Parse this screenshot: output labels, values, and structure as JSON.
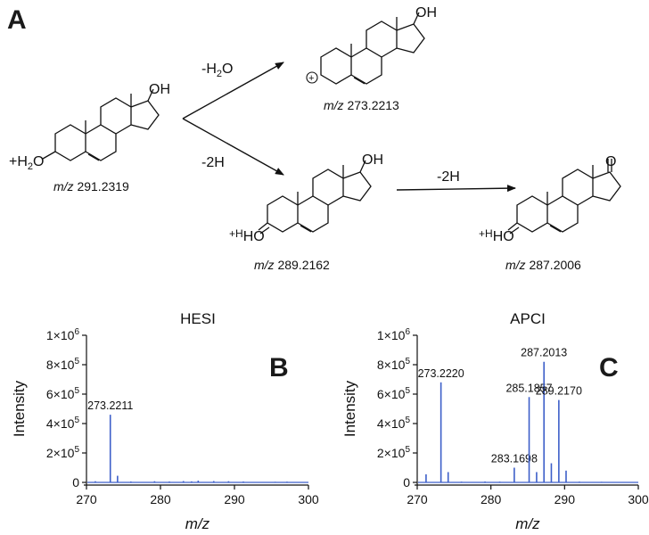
{
  "panel_labels": {
    "a": "A",
    "b": "B",
    "c": "C"
  },
  "scheme": {
    "precursor_mz": "291.2319",
    "product_dehydration_mz": "273.2213",
    "product_dehydrogenation_mz": "289.2162",
    "product_second_mz": "287.2006",
    "mz_prefix": "m/z",
    "arrow_water_loss": "-H",
    "arrow_water_loss_sub": "2",
    "arrow_water_loss_end": "O",
    "arrow_h_loss_1": "-2H",
    "arrow_h_loss_2": "-2H",
    "oh_label": "OH",
    "ho_label": "HO",
    "o_label": "O",
    "charge_h": "+H",
    "charge_h2o_pre": "+H",
    "charge_h2o_sub": "2",
    "charge_h2o_post": "O",
    "cation_symbol": "+"
  },
  "chart_data": [
    {
      "type": "bar",
      "title": "HESI",
      "panel": "B",
      "xlabel": "m/z",
      "ylabel": "Intensity",
      "xlim": [
        270,
        300
      ],
      "ylim": [
        0,
        1000000
      ],
      "x_ticks": [
        270,
        280,
        290,
        300
      ],
      "y_ticks": [
        {
          "value": 0,
          "mant": "0",
          "exp": ""
        },
        {
          "value": 200000,
          "mant": "2×10",
          "exp": "5"
        },
        {
          "value": 400000,
          "mant": "4×10",
          "exp": "5"
        },
        {
          "value": 600000,
          "mant": "6×10",
          "exp": "5"
        },
        {
          "value": 800000,
          "mant": "8×10",
          "exp": "5"
        },
        {
          "value": 1000000,
          "mant": "1×10",
          "exp": "6"
        }
      ],
      "peaks": [
        {
          "x": 271.2,
          "y": 8000
        },
        {
          "x": 273.2211,
          "y": 460000,
          "label": "273.2211"
        },
        {
          "x": 274.2,
          "y": 45000
        },
        {
          "x": 276.0,
          "y": 6000
        },
        {
          "x": 279.2,
          "y": 8000
        },
        {
          "x": 281.2,
          "y": 6000
        },
        {
          "x": 283.1,
          "y": 9000
        },
        {
          "x": 284.2,
          "y": 7000
        },
        {
          "x": 285.1,
          "y": 12000
        },
        {
          "x": 287.2,
          "y": 9000
        },
        {
          "x": 289.2,
          "y": 8000
        },
        {
          "x": 291.2,
          "y": 6000
        },
        {
          "x": 295.5,
          "y": 4000
        },
        {
          "x": 297.1,
          "y": 5000
        }
      ]
    },
    {
      "type": "bar",
      "title": "APCI",
      "panel": "C",
      "xlabel": "m/z",
      "ylabel": "Intensity",
      "xlim": [
        270,
        300
      ],
      "ylim": [
        0,
        1000000
      ],
      "x_ticks": [
        270,
        280,
        290,
        300
      ],
      "y_ticks": [
        {
          "value": 0,
          "mant": "0",
          "exp": ""
        },
        {
          "value": 200000,
          "mant": "2×10",
          "exp": "5"
        },
        {
          "value": 400000,
          "mant": "4×10",
          "exp": "5"
        },
        {
          "value": 600000,
          "mant": "6×10",
          "exp": "5"
        },
        {
          "value": 800000,
          "mant": "8×10",
          "exp": "5"
        },
        {
          "value": 1000000,
          "mant": "1×10",
          "exp": "6"
        }
      ],
      "peaks": [
        {
          "x": 271.2,
          "y": 55000
        },
        {
          "x": 273.222,
          "y": 680000,
          "label": "273.2220"
        },
        {
          "x": 274.2,
          "y": 70000
        },
        {
          "x": 276.0,
          "y": 5000
        },
        {
          "x": 279.2,
          "y": 6000
        },
        {
          "x": 281.2,
          "y": 5000
        },
        {
          "x": 283.1698,
          "y": 100000,
          "label": "283.1698"
        },
        {
          "x": 285.1857,
          "y": 580000,
          "label": "285.1857"
        },
        {
          "x": 286.2,
          "y": 70000
        },
        {
          "x": 287.2013,
          "y": 820000,
          "label": "287.2013"
        },
        {
          "x": 288.2,
          "y": 130000
        },
        {
          "x": 289.217,
          "y": 560000,
          "label": "289.2170"
        },
        {
          "x": 290.2,
          "y": 80000
        },
        {
          "x": 292.0,
          "y": 5000
        },
        {
          "x": 295.0,
          "y": 4000
        }
      ]
    }
  ]
}
